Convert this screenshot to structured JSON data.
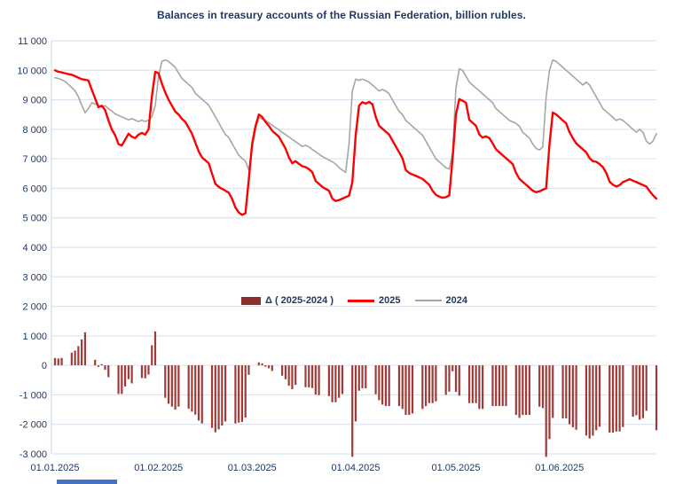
{
  "title": "Balances in treasury accounts of the Russian Federation, billion rubles.",
  "chart_data": {
    "type": "line",
    "title": "Balances in treasury accounts of the Russian Federation, billion rubles.",
    "ylim": [
      -3000,
      11000
    ],
    "grid": "horizontal-only",
    "legend_position": "center-inside",
    "y_ticks": [
      {
        "value": 11000,
        "label": "11 000"
      },
      {
        "value": 10000,
        "label": "10 000"
      },
      {
        "value": 9000,
        "label": "9 000"
      },
      {
        "value": 8000,
        "label": "8 000"
      },
      {
        "value": 7000,
        "label": "7 000"
      },
      {
        "value": 6000,
        "label": "6 000"
      },
      {
        "value": 5000,
        "label": "5 000"
      },
      {
        "value": 4000,
        "label": "4 000"
      },
      {
        "value": 3000,
        "label": "3 000"
      },
      {
        "value": 2000,
        "label": "2 000"
      },
      {
        "value": 1000,
        "label": "1 000"
      },
      {
        "value": 0,
        "label": "0"
      },
      {
        "value": -1000,
        "label": "-1 000"
      },
      {
        "value": -2000,
        "label": "-2 000"
      },
      {
        "value": -3000,
        "label": "-3 000"
      }
    ],
    "x_ticks": [
      {
        "day_index": 0,
        "label": "01.01.2025"
      },
      {
        "day_index": 31,
        "label": "01.02.2025"
      },
      {
        "day_index": 59,
        "label": "01.03.2025"
      },
      {
        "day_index": 90,
        "label": "01.04.2025"
      },
      {
        "day_index": 120,
        "label": "01.05.2025"
      },
      {
        "day_index": 151,
        "label": "01.06.2025"
      }
    ],
    "x_start_date": "01.01.2025",
    "series": [
      {
        "name": "2025",
        "color": "#FF0000",
        "values": [
          10000,
          9950,
          9930,
          9900,
          9870,
          9850,
          9800,
          9750,
          9700,
          9680,
          9650,
          9350,
          9050,
          8750,
          8800,
          8650,
          8300,
          8000,
          7800,
          7500,
          7450,
          7650,
          7850,
          7750,
          7700,
          7820,
          7880,
          7820,
          8000,
          9100,
          9950,
          9900,
          9550,
          9250,
          9000,
          8800,
          8600,
          8500,
          8350,
          8250,
          8050,
          7850,
          7550,
          7250,
          7050,
          6950,
          6850,
          6500,
          6150,
          6050,
          5980,
          5920,
          5850,
          5650,
          5350,
          5180,
          5100,
          5150,
          6300,
          7500,
          8100,
          8500,
          8420,
          8250,
          8120,
          7950,
          7850,
          7750,
          7550,
          7350,
          7050,
          6850,
          6920,
          6830,
          6750,
          6720,
          6650,
          6550,
          6250,
          6150,
          6050,
          5980,
          5920,
          5650,
          5570,
          5600,
          5650,
          5700,
          5750,
          6200,
          7800,
          8800,
          8920,
          8870,
          8930,
          8850,
          8420,
          8120,
          8020,
          7920,
          7820,
          7620,
          7420,
          7220,
          7020,
          6620,
          6520,
          6470,
          6420,
          6370,
          6320,
          6220,
          6120,
          5920,
          5780,
          5720,
          5680,
          5700,
          5760,
          7000,
          8500,
          9020,
          8970,
          8900,
          8320,
          8220,
          8120,
          7820,
          7720,
          7760,
          7700,
          7520,
          7320,
          7220,
          7120,
          7020,
          6920,
          6820,
          6520,
          6320,
          6220,
          6120,
          6020,
          5920,
          5870,
          5900,
          5950,
          6000,
          7500,
          8570,
          8500,
          8400,
          8300,
          8200,
          7900,
          7700,
          7520,
          7420,
          7320,
          7220,
          7020,
          6920,
          6900,
          6820,
          6720,
          6520,
          6220,
          6120,
          6060,
          6110,
          6210,
          6260,
          6310,
          6260,
          6210,
          6160,
          6110,
          6060,
          5900,
          5760,
          5650
        ]
      },
      {
        "name": "2024",
        "color": "#A6A6A6",
        "values": [
          9750,
          9720,
          9680,
          9620,
          9520,
          9420,
          9300,
          9100,
          8820,
          8560,
          8700,
          8900,
          8860,
          8800,
          8760,
          8800,
          8700,
          8620,
          8520,
          8470,
          8420,
          8370,
          8320,
          8360,
          8310,
          8260,
          8310,
          8260,
          8310,
          8420,
          8800,
          9800,
          10300,
          10350,
          10300,
          10200,
          10100,
          9900,
          9720,
          9620,
          9520,
          9420,
          9220,
          9120,
          9020,
          8920,
          8820,
          8620,
          8420,
          8220,
          8020,
          7820,
          7720,
          7520,
          7320,
          7120,
          7020,
          6920,
          6620,
          7350,
          8000,
          8400,
          8350,
          8300,
          8220,
          8140,
          8060,
          7980,
          7900,
          7820,
          7740,
          7660,
          7580,
          7500,
          7420,
          7460,
          7400,
          7320,
          7240,
          7160,
          7080,
          7020,
          6960,
          6900,
          6820,
          6700,
          6620,
          6540,
          7500,
          9300,
          9700,
          9660,
          9700,
          9650,
          9600,
          9500,
          9400,
          9300,
          9350,
          9300,
          9200,
          9000,
          8800,
          8600,
          8500,
          8300,
          8200,
          8100,
          8000,
          7900,
          7800,
          7600,
          7400,
          7200,
          7000,
          6900,
          6800,
          6700,
          6650,
          7200,
          9400,
          10050,
          10000,
          9800,
          9600,
          9500,
          9400,
          9300,
          9200,
          9100,
          9000,
          8900,
          8700,
          8600,
          8500,
          8400,
          8300,
          8250,
          8200,
          8100,
          7900,
          7800,
          7700,
          7500,
          7350,
          7300,
          7400,
          9100,
          10000,
          10350,
          10300,
          10200,
          10100,
          10000,
          9900,
          9800,
          9700,
          9600,
          9500,
          9600,
          9500,
          9300,
          9100,
          8900,
          8700,
          8600,
          8500,
          8400,
          8300,
          8350,
          8300,
          8200,
          8100,
          8000,
          7900,
          8000,
          7900,
          7600,
          7500,
          7600,
          7850
        ]
      }
    ],
    "bar_series": {
      "name": "Δ ( 2025-2024 )",
      "color": "#9e3b38",
      "note": "bars = 2025 value minus 2024 value, weekdays only"
    }
  },
  "legend": {
    "delta_label": "Δ ( 2025-2024 )",
    "label_2025": "2025",
    "label_2024": "2024"
  }
}
